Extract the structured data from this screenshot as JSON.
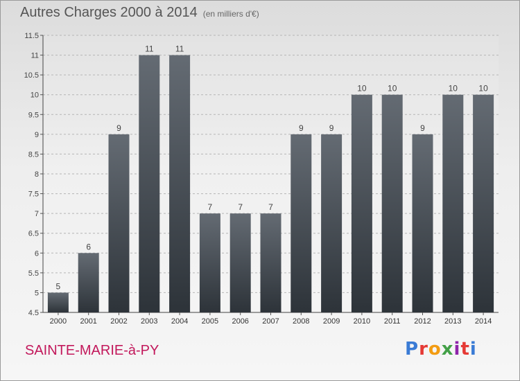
{
  "header": {
    "title": "Autres Charges 2000 à 2014",
    "units": "(en milliers d'€)"
  },
  "footer": {
    "commune": "SAINTE-MARIE-à-PY",
    "logo": "Proxiti"
  },
  "colors": {
    "bar_top": "#646b73",
    "bar_bottom": "#2d3339",
    "grid": "#b5b5b5",
    "commune": "#c2185b"
  },
  "chart_data": {
    "type": "bar",
    "title": "Autres Charges 2000 à 2014",
    "subtitle": "(en milliers d'€)",
    "categories": [
      "2000",
      "2001",
      "2002",
      "2003",
      "2004",
      "2005",
      "2006",
      "2007",
      "2008",
      "2009",
      "2010",
      "2011",
      "2012",
      "2013",
      "2014"
    ],
    "values": [
      5,
      6,
      9,
      11,
      11,
      7,
      7,
      7,
      9,
      9,
      10,
      10,
      9,
      10,
      10
    ],
    "ylim": [
      4.5,
      11.5
    ],
    "yticks": [
      4.5,
      5,
      5.5,
      6,
      6.5,
      7,
      7.5,
      8,
      8.5,
      9,
      9.5,
      10,
      10.5,
      11,
      11.5
    ],
    "ytick_labels": [
      "4.5",
      "5",
      "5.5",
      "6",
      "6.5",
      "7",
      "7.5",
      "8",
      "8.5",
      "9",
      "9.5",
      "10",
      "10.5",
      "11",
      "11.5"
    ],
    "data_labels": [
      "5",
      "6",
      "9",
      "11",
      "11",
      "7",
      "7",
      "7",
      "9",
      "9",
      "10",
      "10",
      "9",
      "10",
      "10"
    ],
    "grid": "horizontal dashed",
    "legend": "none"
  }
}
